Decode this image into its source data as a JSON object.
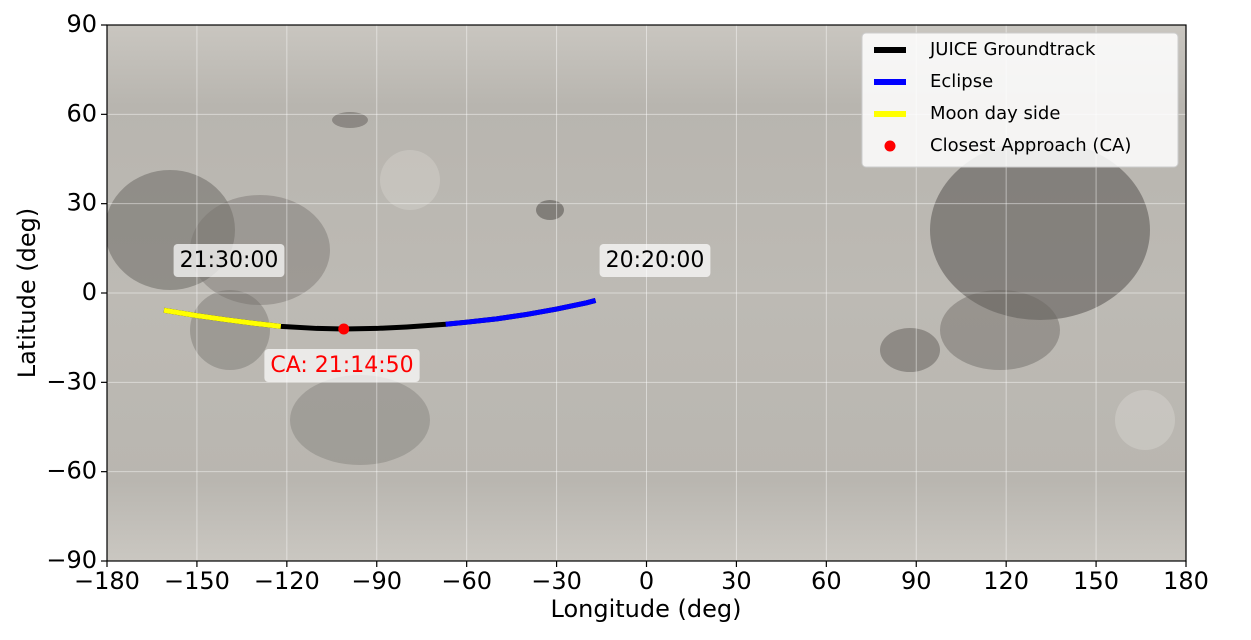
{
  "chart_data": {
    "type": "line",
    "xlabel": "Longitude (deg)",
    "ylabel": "Latitude (deg)",
    "xlim": [
      -180,
      180
    ],
    "ylim": [
      -90,
      90
    ],
    "xticks": [
      {
        "value": -180,
        "label": "−180"
      },
      {
        "value": -150,
        "label": "−150"
      },
      {
        "value": -120,
        "label": "−120"
      },
      {
        "value": -90,
        "label": "−90"
      },
      {
        "value": -60,
        "label": "−60"
      },
      {
        "value": -30,
        "label": "−30"
      },
      0,
      30,
      60,
      90,
      120,
      150,
      180
    ],
    "yticks": [
      {
        "value": -90,
        "label": "−90"
      },
      {
        "value": -60,
        "label": "−60"
      },
      {
        "value": -30,
        "label": "−30"
      },
      0,
      30,
      60,
      90
    ],
    "grid": true,
    "legend": "upper-right",
    "x": [
      -17,
      -20,
      -30,
      -40,
      -50,
      -60,
      -67,
      -80,
      -90,
      -101,
      -110,
      -122,
      -130,
      -140,
      -150,
      -161
    ],
    "series": [
      {
        "name": "JUICE Groundtrack",
        "color": "#000000",
        "values": [
          -2.5,
          -3.3,
          -5.4,
          -7.2,
          -8.7,
          -9.8,
          -10.5,
          -11.4,
          -11.9,
          -12.1,
          -11.9,
          -11.2,
          -10.3,
          -9.0,
          -7.6,
          -5.8
        ]
      },
      {
        "name": "Eclipse",
        "color": "#0000ff",
        "values": [
          -2.5,
          -3.3,
          -5.4,
          -7.2,
          -8.7,
          -9.8,
          -10.5,
          null,
          null,
          null,
          null,
          null,
          null,
          null,
          null,
          null
        ]
      },
      {
        "name": "Moon day side",
        "color": "#ffff00",
        "values": [
          null,
          null,
          null,
          null,
          null,
          null,
          null,
          null,
          null,
          null,
          null,
          -11.2,
          -10.3,
          -9.0,
          -7.6,
          -5.8
        ]
      }
    ],
    "ca": {
      "name": "Closest Approach (CA)",
      "color": "#ff0000",
      "x": -101,
      "y": -12.1
    },
    "annotations": [
      "21:30:00",
      "20:20:00",
      "CA: 21:14:50"
    ]
  }
}
